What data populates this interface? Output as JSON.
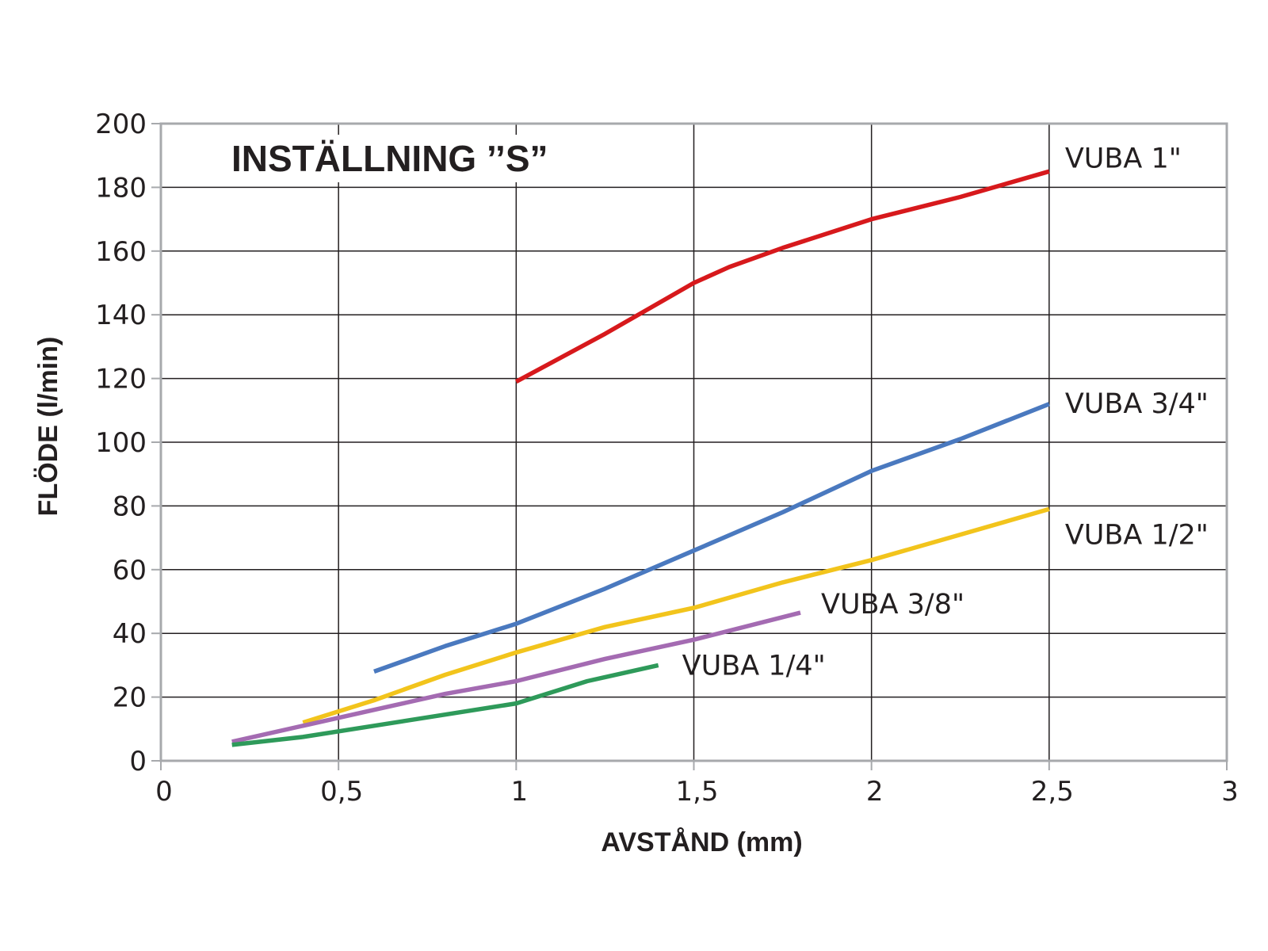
{
  "chart_data": {
    "type": "line",
    "title": "INSTÄLLNING ’’S”",
    "xlabel": "AVSTÅND (mm)",
    "ylabel": "FLÖDE (l/min)",
    "xlim": [
      0,
      3
    ],
    "ylim": [
      0,
      200
    ],
    "x_ticks": [
      0,
      0.5,
      1,
      1.5,
      2,
      2.5,
      3
    ],
    "x_tick_labels": [
      "0",
      "0,5",
      "1",
      "1,5",
      "2",
      "2,5",
      "3"
    ],
    "y_ticks": [
      0,
      20,
      40,
      60,
      80,
      100,
      120,
      140,
      160,
      180,
      200
    ],
    "y_tick_labels": [
      "0",
      "20",
      "40",
      "60",
      "80",
      "100",
      "120",
      "140",
      "160",
      "180",
      "200"
    ],
    "grid": true,
    "legend": "direct labels at line ends",
    "series": [
      {
        "name": "VUBA 1\"",
        "color": "#d7191c",
        "x": [
          1,
          1.25,
          1.5,
          1.6,
          1.75,
          2,
          2.25,
          2.5
        ],
        "y": [
          119,
          134,
          150,
          155,
          161,
          170,
          177,
          185
        ]
      },
      {
        "name": "VUBA 3/4\"",
        "color": "#4a79bf",
        "x": [
          0.6,
          0.8,
          1,
          1.25,
          1.5,
          1.75,
          2,
          2.25,
          2.5
        ],
        "y": [
          28,
          36,
          43,
          54,
          66,
          78,
          91,
          101,
          112
        ]
      },
      {
        "name": "VUBA 1/2\"",
        "color": "#f2c41c",
        "x": [
          0.4,
          0.6,
          0.8,
          1,
          1.25,
          1.5,
          1.75,
          2,
          2.25,
          2.5
        ],
        "y": [
          12,
          19,
          27,
          34,
          42,
          48,
          56,
          63,
          71,
          79
        ]
      },
      {
        "name": "VUBA 3/8\"",
        "color": "#a46bb2",
        "x": [
          0.2,
          0.4,
          0.6,
          0.8,
          1,
          1.25,
          1.5,
          1.8
        ],
        "y": [
          6,
          11,
          16,
          21,
          25,
          32,
          38,
          46.5
        ]
      },
      {
        "name": "VUBA 1/4\"",
        "color": "#2e9a5a",
        "x": [
          0.2,
          0.4,
          0.6,
          0.8,
          1,
          1.2,
          1.4
        ],
        "y": [
          5,
          7.5,
          11,
          14.5,
          18,
          25,
          30
        ]
      }
    ]
  }
}
